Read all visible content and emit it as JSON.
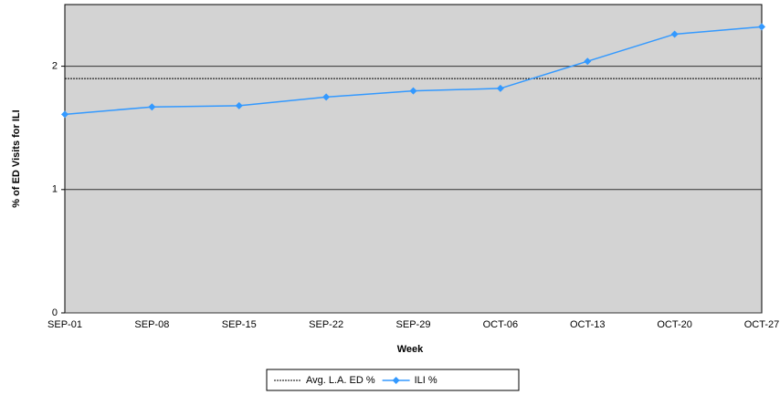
{
  "chart_data": {
    "type": "line",
    "x_label": "Week",
    "y_label": "% of ED Visits for ILI",
    "categories": [
      "SEP-01",
      "SEP-08",
      "SEP-15",
      "SEP-22",
      "SEP-29",
      "OCT-06",
      "OCT-13",
      "OCT-20",
      "OCT-27"
    ],
    "series": [
      {
        "name": "Avg. L.A. ED %",
        "color": "#000000",
        "dashed": true,
        "markers": false,
        "values": [
          1.9,
          1.9,
          1.9,
          1.9,
          1.9,
          1.9,
          1.9,
          1.9,
          1.9
        ]
      },
      {
        "name": "ILI %",
        "color": "#3399ff",
        "dashed": false,
        "markers": true,
        "values": [
          1.61,
          1.67,
          1.68,
          1.75,
          1.8,
          1.82,
          2.04,
          2.26,
          2.32
        ]
      }
    ],
    "ylim": [
      0,
      2.5
    ],
    "yticks": [
      0,
      1,
      2
    ],
    "grid": true,
    "legend": "bottom"
  }
}
